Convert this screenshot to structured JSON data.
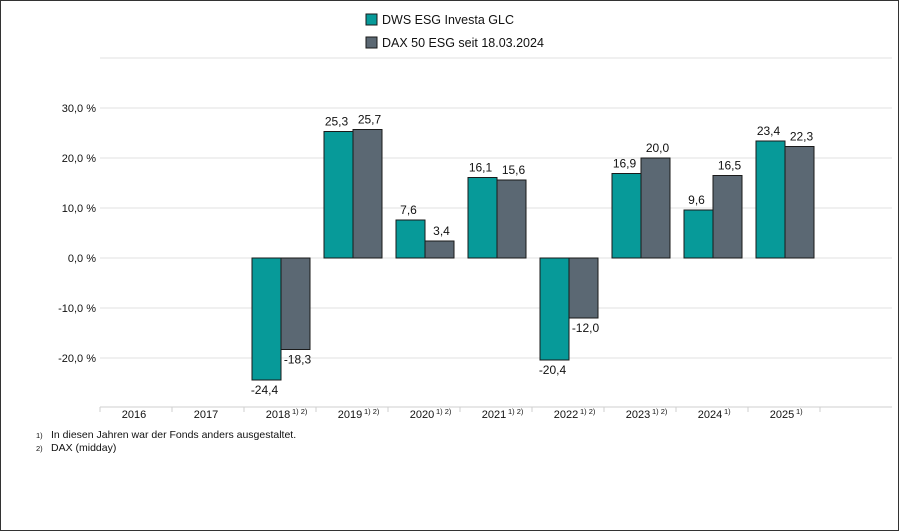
{
  "chart_data": {
    "type": "bar",
    "categories": [
      "2016",
      "2017",
      "2018",
      "2019",
      "2020",
      "2021",
      "2022",
      "2023",
      "2024",
      "2025"
    ],
    "category_notes": [
      "",
      "",
      "1) 2)",
      "1) 2)",
      "1) 2)",
      "1) 2)",
      "1) 2)",
      "1) 2)",
      "1)",
      "1)"
    ],
    "series": [
      {
        "name": "DWS ESG Investa GLC",
        "color": "#079a99",
        "values": [
          null,
          null,
          -24.4,
          25.3,
          7.6,
          16.1,
          -20.4,
          16.9,
          9.6,
          23.4
        ],
        "labels": [
          "",
          "",
          "-24,4",
          "25,3",
          "7,6",
          "16,1",
          "-20,4",
          "16,9",
          "9,6",
          "23,4"
        ]
      },
      {
        "name": "DAX 50 ESG seit 18.03.2024",
        "color": "#5b6873",
        "values": [
          null,
          null,
          -18.3,
          25.7,
          3.4,
          15.6,
          -12.0,
          20.0,
          16.5,
          22.3
        ],
        "labels": [
          "",
          "",
          "-18,3",
          "25,7",
          "3,4",
          "15,6",
          "-12,0",
          "20,0",
          "16,5",
          "22,3"
        ]
      }
    ],
    "yticks": [
      30,
      20,
      10,
      0,
      -10,
      -20
    ],
    "ytick_labels": [
      "30,0 %",
      "20,0 %",
      "10,0 %",
      "0,0 %",
      "-10,0 %",
      "-20,0 %"
    ],
    "ylim": [
      -30,
      40
    ],
    "grid": true,
    "legend_position": "top-center",
    "title": "",
    "xlabel": "",
    "ylabel": ""
  },
  "footnotes": [
    {
      "mark": "1)",
      "text": "In diesen Jahren war der Fonds anders ausgestaltet."
    },
    {
      "mark": "2)",
      "text": "DAX (midday)"
    }
  ]
}
